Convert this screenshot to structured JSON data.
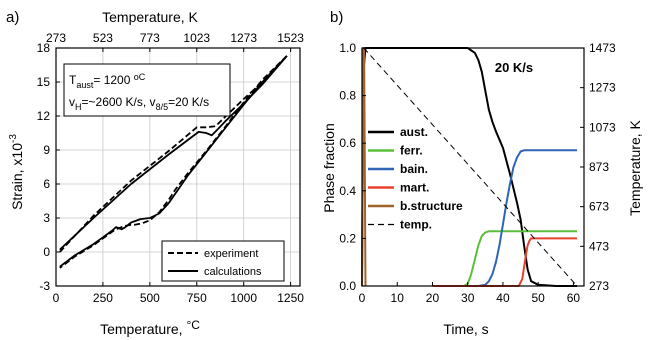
{
  "chart_data": [
    {
      "panel_label": "a)",
      "type": "line",
      "title": "",
      "xlabel": "Temperature, ",
      "xlabel_unit": "°C",
      "ylabel": "Strain, x10",
      "ylabel_exp": "-3",
      "x_top_label": "Temperature, K",
      "xlim": [
        0,
        1300
      ],
      "ylim": [
        -3,
        18
      ],
      "x_ticks": [
        0,
        250,
        500,
        750,
        1000,
        1250
      ],
      "x_tick_labels": [
        "0",
        "250",
        "500",
        "750",
        "1000",
        "1250"
      ],
      "y_ticks": [
        -3,
        0,
        3,
        6,
        9,
        12,
        15,
        18
      ],
      "y_tick_labels": [
        "-3",
        "0",
        "3",
        "6",
        "9",
        "12",
        "15",
        "18"
      ],
      "x_top_ticks": [
        0,
        250,
        500,
        750,
        1000,
        1250
      ],
      "x_top_tick_labels": [
        "273",
        "523",
        "773",
        "1023",
        "1273",
        "1523"
      ],
      "grid": true,
      "annotation": {
        "line1_main": "T",
        "line1_sub": "aust",
        "line1_rest": "= 1200 ",
        "line1_unit": "oC",
        "line2_v1": "v",
        "line2_sub1": "H",
        "line2_mid": "=~2600 K/s, v",
        "line2_sub2": "8/5",
        "line2_rest": "=20 K/s"
      },
      "legend_position": "bottom-right",
      "series": [
        {
          "name": "experiment",
          "style": "dashed",
          "segments": [
            {
              "x": [
                20,
                200,
                400,
                600,
                750,
                800,
                850,
                900,
                1000,
                1100,
                1230
              ],
              "y": [
                0.0,
                3.2,
                6.3,
                8.9,
                11.0,
                11.0,
                11.1,
                11.9,
                13.5,
                15.0,
                17.3
              ]
            },
            {
              "x": [
                1230,
                1100,
                1000,
                900,
                800,
                700,
                640,
                600,
                550,
                500,
                470,
                450,
                420,
                400,
                370,
                350,
                320,
                300,
                250,
                200,
                100,
                20
              ],
              "y": [
                17.3,
                15.2,
                13.2,
                11.0,
                8.9,
                6.9,
                5.6,
                4.6,
                3.5,
                2.8,
                2.6,
                2.5,
                2.4,
                2.4,
                2.3,
                2.2,
                2.0,
                1.8,
                1.2,
                0.6,
                -0.4,
                -1.4
              ]
            }
          ]
        },
        {
          "name": "calculations",
          "style": "solid",
          "segments": [
            {
              "x": [
                20,
                200,
                400,
                600,
                760,
                800,
                830,
                860,
                900,
                1000,
                1100,
                1230
              ],
              "y": [
                0.2,
                3.0,
                6.0,
                8.6,
                10.6,
                10.5,
                10.3,
                10.8,
                11.5,
                13.1,
                14.8,
                17.3
              ]
            },
            {
              "x": [
                1230,
                1100,
                1000,
                900,
                800,
                700,
                650,
                600,
                550,
                500,
                450,
                400,
                370,
                350,
                320,
                300,
                250,
                200,
                100,
                20
              ],
              "y": [
                17.3,
                15.0,
                13.0,
                10.9,
                8.8,
                6.7,
                5.5,
                4.3,
                3.4,
                3.0,
                2.9,
                2.6,
                2.2,
                2.0,
                2.2,
                1.9,
                1.3,
                0.7,
                -0.3,
                -1.3
              ]
            }
          ]
        }
      ]
    },
    {
      "panel_label": "b)",
      "type": "line",
      "title": "20 K/s",
      "xlabel": "Time, s",
      "ylabel": "Phase fraction",
      "ylabel_right": "Temperature, K",
      "xlim": [
        0,
        63
      ],
      "ylim": [
        0,
        1.0
      ],
      "ylim_right": [
        273,
        1473
      ],
      "x_ticks": [
        0,
        10,
        20,
        30,
        40,
        50,
        60
      ],
      "x_tick_labels": [
        "0",
        "10",
        "20",
        "30",
        "40",
        "50",
        "60"
      ],
      "y_ticks": [
        0,
        0.2,
        0.4,
        0.6,
        0.8,
        1.0
      ],
      "y_tick_labels": [
        "0.0",
        "0.2",
        "0.4",
        "0.6",
        "0.8",
        "1.0"
      ],
      "y_right_ticks": [
        273,
        473,
        673,
        873,
        1073,
        1273,
        1473
      ],
      "y_right_tick_labels": [
        "273",
        "473",
        "673",
        "873",
        "1073",
        "1273",
        "1473"
      ],
      "grid": false,
      "legend_position": "left",
      "colors": {
        "aust": "#000000",
        "ferr": "#5bbf3c",
        "bain": "#2f64b6",
        "mart": "#e8412c",
        "bstructure": "#a0632e",
        "temp": "#000000"
      },
      "series": [
        {
          "name": "aust.",
          "color": "#000000",
          "style": "solid",
          "axis": "left",
          "x": [
            0,
            0.4,
            1.0,
            28,
            30,
            32,
            33,
            34,
            35,
            36,
            37,
            38,
            40,
            42,
            44,
            45,
            46,
            47,
            48,
            50,
            55,
            61
          ],
          "y": [
            0,
            0.9,
            1.0,
            1.0,
            1.0,
            0.98,
            0.95,
            0.9,
            0.82,
            0.74,
            0.69,
            0.65,
            0.58,
            0.47,
            0.35,
            0.28,
            0.17,
            0.07,
            0.02,
            0.005,
            0.0,
            0.0
          ]
        },
        {
          "name": "ferr.",
          "color": "#5bbf3c",
          "style": "solid",
          "axis": "left",
          "x": [
            20,
            29,
            30,
            31,
            32,
            33,
            34,
            35,
            36,
            40,
            50,
            61
          ],
          "y": [
            0,
            0,
            0.01,
            0.05,
            0.11,
            0.17,
            0.21,
            0.225,
            0.23,
            0.23,
            0.23,
            0.23
          ]
        },
        {
          "name": "bain.",
          "color": "#2f64b6",
          "style": "solid",
          "axis": "left",
          "x": [
            20,
            33,
            35,
            36,
            37,
            38,
            39,
            40,
            41,
            42,
            43,
            44,
            45,
            46,
            50,
            55,
            61
          ],
          "y": [
            0,
            0,
            0.005,
            0.02,
            0.05,
            0.1,
            0.17,
            0.26,
            0.35,
            0.43,
            0.5,
            0.54,
            0.565,
            0.57,
            0.57,
            0.57,
            0.57
          ]
        },
        {
          "name": "mart.",
          "color": "#e8412c",
          "style": "solid",
          "axis": "left",
          "x": [
            20,
            44.5,
            45.5,
            46,
            46.5,
            47,
            47.5,
            48,
            49,
            50,
            55,
            61
          ],
          "y": [
            0,
            0,
            0.03,
            0.08,
            0.13,
            0.17,
            0.19,
            0.2,
            0.2,
            0.2,
            0.2,
            0.2
          ]
        },
        {
          "name": "b.structure",
          "color": "#a0632e",
          "style": "solid",
          "axis": "left",
          "x": [
            0,
            0.4,
            0.6,
            1.0
          ],
          "y": [
            0.0,
            1.0,
            1.0,
            0.0
          ]
        },
        {
          "name": "temp.",
          "color": "#000000",
          "style": "dashed",
          "axis": "right",
          "x": [
            0.5,
            61
          ],
          "y": [
            1473,
            273
          ]
        }
      ]
    }
  ]
}
